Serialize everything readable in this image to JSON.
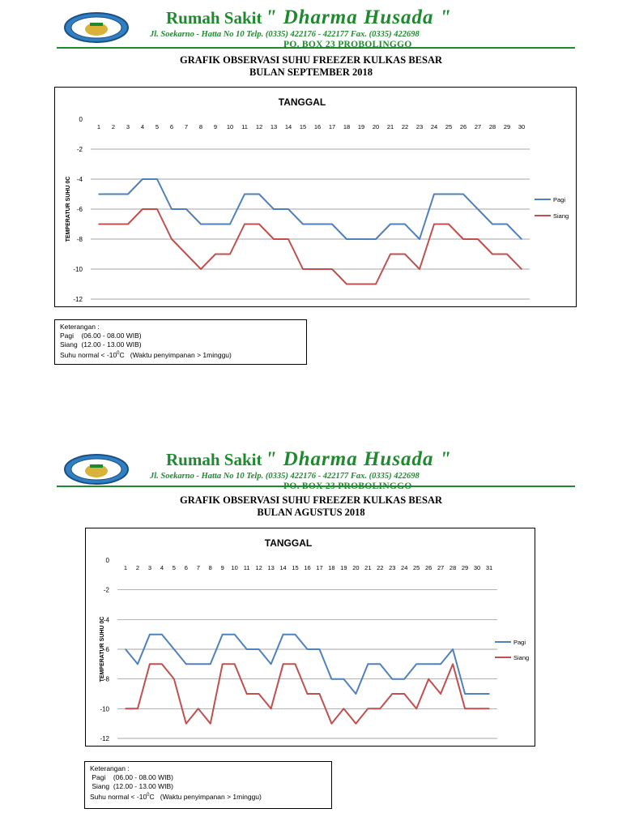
{
  "hospital": {
    "name_prefix": "Rumah Sakit",
    "name_main": "\" Dharma Husada \"",
    "address": "Jl. Soekarno - Hatta No 10 Telp. (0335) 422176 - 422177 Fax. (0335) 422698",
    "pobox": "PO. BOX 23 PROBOLINGGO",
    "colors": {
      "green": "#1e8a2e",
      "pagi": "#4f81bd",
      "siang": "#c0504d"
    }
  },
  "charts": [
    {
      "title_line1": "GRAFIK OBSERVASI SUHU FREEZER KULKAS BESAR",
      "title_line2": "BULAN SEPTEMBER 2018",
      "keterangan": {
        "header": "Keterangan :",
        "pagi": "Pagi    (06.00 - 08.00 WIB)",
        "siang": "Siang  (12.00 - 13.00 WIB)",
        "normal_prefix": "Suhu normal < -10",
        "normal_unit": "0",
        "normal_suffix": "C   (Waktu penyimpanan > 1minggu)"
      }
    },
    {
      "title_line1": "GRAFIK OBSERVASI SUHU FREEZER KULKAS BESAR",
      "title_line2": "BULAN AGUSTUS 2018",
      "keterangan": {
        "header": "Keterangan :",
        "pagi": " Pagi    (06.00 - 08.00 WIB)",
        "siang": " Siang  (12.00 - 13.00 WIB)",
        "normal_prefix": "Suhu normal < -10",
        "normal_unit": "0",
        "normal_suffix": "C   (Waktu penyimpanan > 1minggu)"
      }
    }
  ],
  "chart_data": [
    {
      "type": "line",
      "title": "TANGGAL",
      "ylabel": "TEMPERATUR  SUHU 0C",
      "ylim": [
        -12,
        0
      ],
      "yticks": [
        0,
        -2,
        -4,
        -6,
        -8,
        -10,
        -12
      ],
      "grid": true,
      "legend": "right",
      "categories": [
        "1",
        "2",
        "3",
        "4",
        "5",
        "6",
        "7",
        "8",
        "9",
        "10",
        "11",
        "12",
        "13",
        "14",
        "15",
        "16",
        "17",
        "18",
        "19",
        "20",
        "21",
        "22",
        "23",
        "24",
        "25",
        "26",
        "27",
        "28",
        "29",
        "30"
      ],
      "series": [
        {
          "name": "Pagi",
          "color": "#4f81bd",
          "values": [
            -5,
            -5,
            -5,
            -4,
            -4,
            -6,
            -6,
            -7,
            -7,
            -7,
            -5,
            -5,
            -6,
            -6,
            -7,
            -7,
            -7,
            -8,
            -8,
            -8,
            -7,
            -7,
            -8,
            -5,
            -5,
            -5,
            -6,
            -7,
            -7,
            -8
          ]
        },
        {
          "name": "Siang",
          "color": "#c0504d",
          "values": [
            -7,
            -7,
            -7,
            -6,
            -6,
            -8,
            -9,
            -10,
            -9,
            -9,
            -7,
            -7,
            -8,
            -8,
            -10,
            -10,
            -10,
            -11,
            -11,
            -11,
            -9,
            -9,
            -10,
            -7,
            -7,
            -8,
            -8,
            -9,
            -9,
            -10
          ]
        }
      ]
    },
    {
      "type": "line",
      "title": "TANGGAL",
      "ylabel": "TEMPERATUR SUHU 0C",
      "ylim": [
        -12,
        0
      ],
      "yticks": [
        0,
        -2,
        -4,
        -6,
        -8,
        -10,
        -12
      ],
      "grid": true,
      "legend": "right",
      "categories": [
        "1",
        "2",
        "3",
        "4",
        "5",
        "6",
        "7",
        "8",
        "9",
        "10",
        "11",
        "12",
        "13",
        "14",
        "15",
        "16",
        "17",
        "18",
        "19",
        "20",
        "21",
        "22",
        "23",
        "24",
        "25",
        "26",
        "27",
        "28",
        "29",
        "30",
        "31"
      ],
      "series": [
        {
          "name": "Pagi",
          "color": "#4f81bd",
          "values": [
            -6,
            -7,
            -5,
            -5,
            -6,
            -7,
            -7,
            -7,
            -5,
            -5,
            -6,
            -6,
            -7,
            -5,
            -5,
            -6,
            -6,
            -8,
            -8,
            -9,
            -7,
            -7,
            -8,
            -8,
            -7,
            -7,
            -7,
            -6,
            -9,
            -9,
            -9
          ]
        },
        {
          "name": "Siang",
          "color": "#c0504d",
          "values": [
            -10,
            -10,
            -7,
            -7,
            -8,
            -11,
            -10,
            -11,
            -7,
            -7,
            -9,
            -9,
            -10,
            -7,
            -7,
            -9,
            -9,
            -11,
            -10,
            -11,
            -10,
            -10,
            -9,
            -9,
            -10,
            -8,
            -9,
            -7,
            -10,
            -10,
            -10
          ]
        }
      ]
    }
  ]
}
